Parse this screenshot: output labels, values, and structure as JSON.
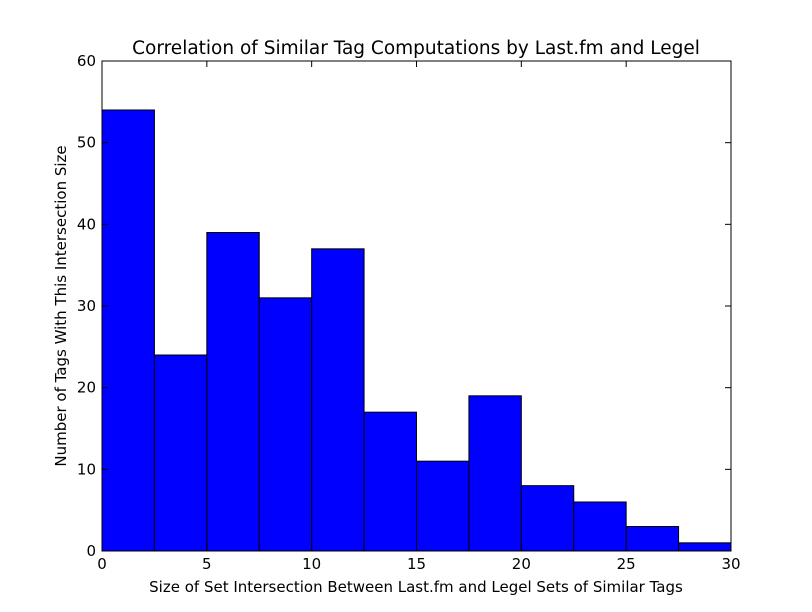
{
  "chart_data": {
    "type": "bar",
    "title": "Correlation of Similar Tag Computations by Last.fm and Legel",
    "xlabel": "Size of Set Intersection Between Last.fm and Legel Sets of Similar Tags",
    "ylabel": "Number of Tags With This Intersection Size",
    "xlim": [
      0,
      30
    ],
    "ylim": [
      0,
      60
    ],
    "xticks": [
      0,
      5,
      10,
      15,
      20,
      25,
      30
    ],
    "yticks": [
      0,
      10,
      20,
      30,
      40,
      50,
      60
    ],
    "grid": false,
    "bar_color": "#0000ff",
    "bins": [
      {
        "x0": 0.0,
        "x1": 2.5,
        "value": 54
      },
      {
        "x0": 2.5,
        "x1": 5.0,
        "value": 24
      },
      {
        "x0": 5.0,
        "x1": 7.5,
        "value": 39
      },
      {
        "x0": 7.5,
        "x1": 10.0,
        "value": 31
      },
      {
        "x0": 10.0,
        "x1": 12.5,
        "value": 37
      },
      {
        "x0": 12.5,
        "x1": 15.0,
        "value": 17
      },
      {
        "x0": 15.0,
        "x1": 17.5,
        "value": 11
      },
      {
        "x0": 17.5,
        "x1": 20.0,
        "value": 19
      },
      {
        "x0": 20.0,
        "x1": 22.5,
        "value": 8
      },
      {
        "x0": 22.5,
        "x1": 25.0,
        "value": 6
      },
      {
        "x0": 25.0,
        "x1": 27.5,
        "value": 3
      },
      {
        "x0": 27.5,
        "x1": 30.0,
        "value": 1
      }
    ]
  }
}
